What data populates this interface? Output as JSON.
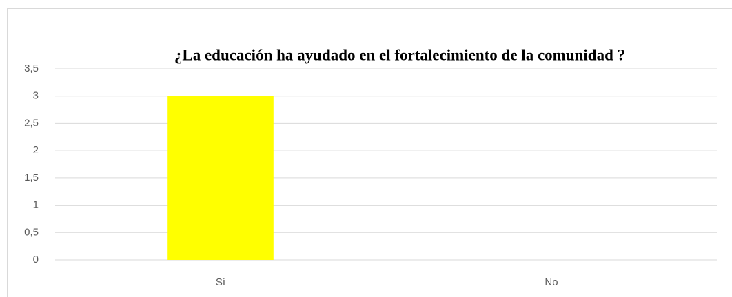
{
  "chart_data": {
    "type": "bar",
    "title": "¿La educación ha ayudado en el fortalecimiento de la comunidad ?",
    "categories": [
      "Sí",
      "No"
    ],
    "values": [
      3,
      0
    ],
    "color": "#ffff00",
    "ylim": [
      0,
      3.5
    ],
    "yticks": [
      0,
      {
        "value": 0.5,
        "label": "0,5"
      },
      1,
      {
        "value": 1.5,
        "label": "1,5"
      },
      2,
      {
        "value": 2.5,
        "label": "2,5"
      },
      3,
      {
        "value": 3.5,
        "label": "3,5"
      }
    ],
    "grid": true
  }
}
